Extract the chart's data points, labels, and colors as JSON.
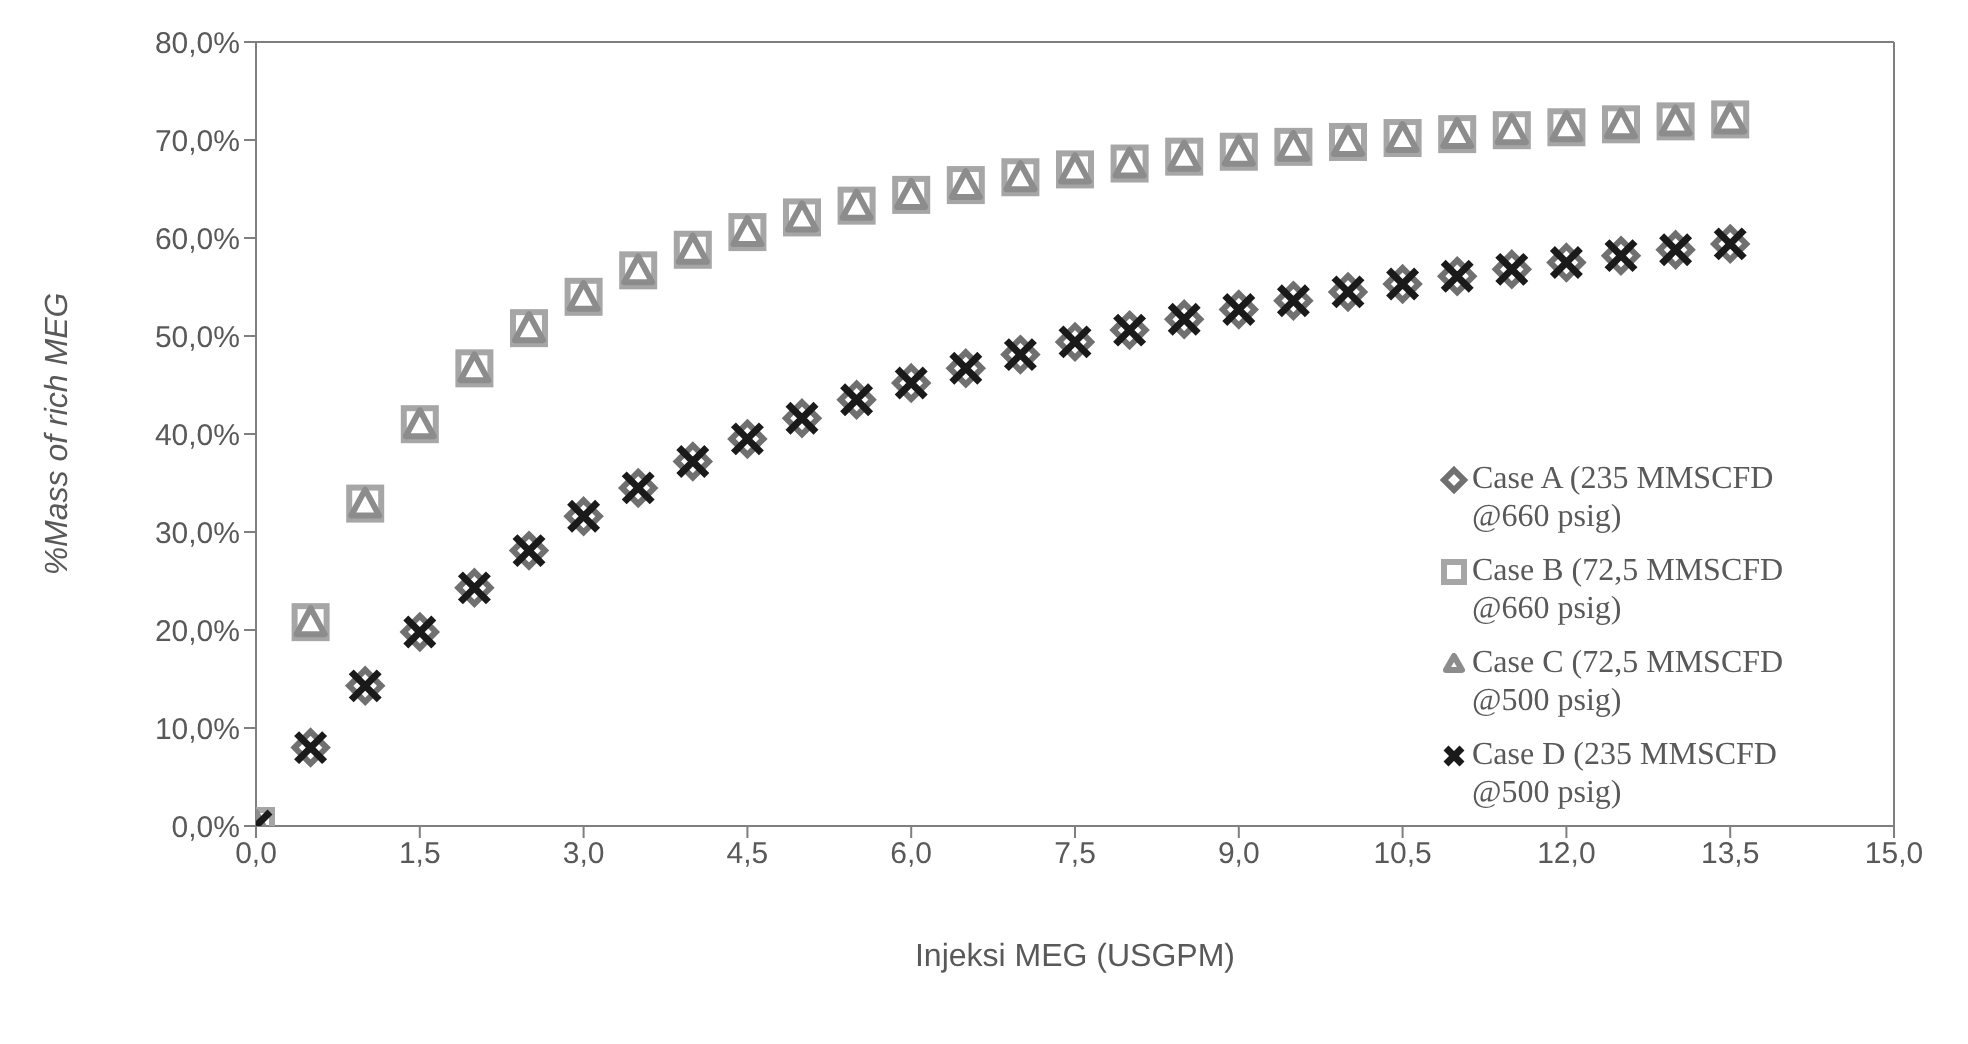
{
  "chart_data": {
    "type": "scatter",
    "xlabel": "Injeksi MEG (USGPM)",
    "ylabel": "%Mass of rich MEG",
    "x": [
      0,
      0.5,
      1,
      1.5,
      2,
      2.5,
      3,
      3.5,
      4,
      4.5,
      5,
      5.5,
      6,
      6.5,
      7,
      7.5,
      8,
      8.5,
      9,
      9.5,
      10,
      10.5,
      11,
      11.5,
      12,
      12.5,
      13,
      13.5
    ],
    "series": [
      {
        "name": "Case A (235 MMSCFD @660 psig)",
        "color": "#707070",
        "marker": "diamond",
        "values": [
          null,
          8.0,
          14.3,
          19.8,
          24.3,
          28.1,
          31.6,
          34.5,
          37.2,
          39.5,
          41.6,
          43.5,
          45.2,
          46.7,
          48.1,
          49.4,
          50.6,
          51.7,
          52.7,
          53.6,
          54.5,
          55.3,
          56.1,
          56.8,
          57.5,
          58.2,
          58.8,
          59.4
        ]
      },
      {
        "name": "Case B (72,5 MMSCFD @660 psig)",
        "color": "#a6a6a6",
        "marker": "square",
        "values": [
          0,
          20.8,
          32.9,
          41.0,
          46.7,
          50.8,
          54.0,
          56.7,
          58.8,
          60.6,
          62.1,
          63.3,
          64.4,
          65.4,
          66.2,
          67.0,
          67.6,
          68.3,
          68.8,
          69.3,
          69.8,
          70.2,
          70.6,
          71.0,
          71.3,
          71.6,
          71.9,
          72.1
        ]
      },
      {
        "name": "Case C (72,5 MMSCFD @500 psig)",
        "color": "#8c8c8c",
        "marker": "triangle",
        "values": [
          0,
          20.8,
          32.9,
          41.0,
          46.7,
          50.8,
          54.0,
          56.7,
          58.8,
          60.6,
          62.1,
          63.3,
          64.4,
          65.4,
          66.2,
          67.0,
          67.6,
          68.3,
          68.8,
          69.3,
          69.8,
          70.2,
          70.6,
          71.0,
          71.3,
          71.6,
          71.9,
          72.1
        ]
      },
      {
        "name": "Case D (235 MMSCFD @500 psig)",
        "color": "#1a1a1a",
        "marker": "cross",
        "values": [
          0,
          8.0,
          14.3,
          19.8,
          24.3,
          28.1,
          31.6,
          34.5,
          37.2,
          39.5,
          41.6,
          43.5,
          45.2,
          46.7,
          48.1,
          49.4,
          50.6,
          51.7,
          52.7,
          53.6,
          54.5,
          55.3,
          56.1,
          56.8,
          57.5,
          58.2,
          58.8,
          59.4
        ]
      }
    ],
    "xlim": [
      0,
      15
    ],
    "xticks": [
      {
        "value": 0,
        "label": "0,0"
      },
      {
        "value": 1.5,
        "label": "1,5"
      },
      {
        "value": 3,
        "label": "3,0"
      },
      {
        "value": 4.5,
        "label": "4,5"
      },
      {
        "value": 6,
        "label": "6,0"
      },
      {
        "value": 7.5,
        "label": "7,5"
      },
      {
        "value": 9,
        "label": "9,0"
      },
      {
        "value": 10.5,
        "label": "10,5"
      },
      {
        "value": 12,
        "label": "12,0"
      },
      {
        "value": 13.5,
        "label": "13,5"
      },
      {
        "value": 15,
        "label": "15,0"
      }
    ],
    "ylim": [
      0,
      80
    ],
    "yticks": [
      {
        "value": 0,
        "label": "0,0%"
      },
      {
        "value": 10,
        "label": "10,0%"
      },
      {
        "value": 20,
        "label": "20,0%"
      },
      {
        "value": 30,
        "label": "30,0%"
      },
      {
        "value": 40,
        "label": "40,0%"
      },
      {
        "value": 50,
        "label": "50,0%"
      },
      {
        "value": 60,
        "label": "60,0%"
      },
      {
        "value": 70,
        "label": "70,0%"
      },
      {
        "value": 80,
        "label": "80,0%"
      }
    ],
    "grid": false,
    "legend": "right"
  }
}
